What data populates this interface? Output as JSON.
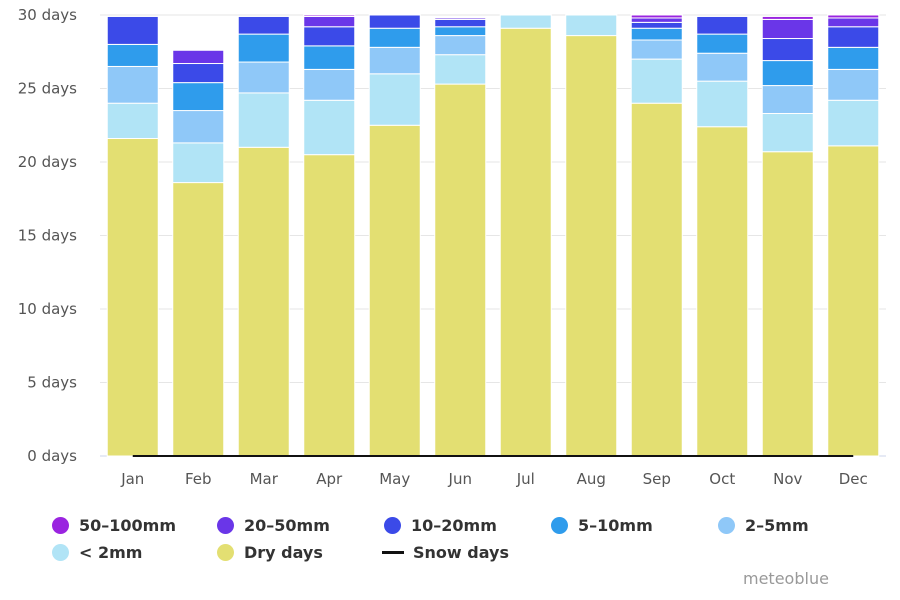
{
  "chart_data": {
    "type": "bar",
    "stacked": true,
    "categories": [
      "Jan",
      "Feb",
      "Mar",
      "Apr",
      "May",
      "Jun",
      "Jul",
      "Aug",
      "Sep",
      "Oct",
      "Nov",
      "Dec"
    ],
    "ylim": [
      0,
      30
    ],
    "yticks": [
      0,
      5,
      10,
      15,
      20,
      25,
      30
    ],
    "ytick_labels": [
      "0 days",
      "5 days",
      "10 days",
      "15 days",
      "20 days",
      "25 days",
      "30 days"
    ],
    "grid": true,
    "legend_position": "bottom",
    "series": [
      {
        "name": "Dry days",
        "color": "#e3df72",
        "values": [
          21.6,
          18.6,
          21.0,
          20.5,
          22.5,
          25.3,
          29.1,
          28.6,
          24.0,
          22.4,
          20.7,
          21.1
        ]
      },
      {
        "name": "< 2mm",
        "color": "#b1e4f6",
        "values": [
          2.4,
          2.7,
          3.7,
          3.7,
          3.5,
          2.0,
          0.9,
          1.4,
          3.0,
          3.1,
          2.6,
          3.1
        ]
      },
      {
        "name": "2-5mm",
        "color": "#8fc8f8",
        "values": [
          2.5,
          2.2,
          2.1,
          2.1,
          1.8,
          1.3,
          0,
          0,
          1.3,
          1.9,
          1.9,
          2.1
        ]
      },
      {
        "name": "5-10mm",
        "color": "#2f9cec",
        "values": [
          1.5,
          1.9,
          1.9,
          1.6,
          1.3,
          0.6,
          0,
          0,
          0.8,
          1.3,
          1.7,
          1.5
        ]
      },
      {
        "name": "10-20mm",
        "color": "#3b4ae8",
        "values": [
          1.9,
          1.3,
          1.2,
          1.3,
          0.9,
          0.5,
          0,
          0,
          0.4,
          1.2,
          1.5,
          1.4
        ]
      },
      {
        "name": "20-50mm",
        "color": "#6a36e8",
        "values": [
          0,
          0.9,
          0,
          0.7,
          0,
          0.1,
          0,
          0,
          0.3,
          0,
          1.3,
          0.6
        ]
      },
      {
        "name": "50-100mm",
        "color": "#9a24e0",
        "values": [
          0,
          0,
          0,
          0.2,
          0,
          0,
          0,
          0,
          0.2,
          0,
          0.2,
          0.2
        ]
      },
      {
        "name": "Snow days",
        "color": "#111111",
        "line": true,
        "values": [
          0,
          0,
          0,
          0,
          0,
          0,
          0,
          0,
          0,
          0,
          0,
          0
        ]
      }
    ],
    "legend_order": [
      "50-100mm",
      "20-50mm",
      "10-20mm",
      "5-10mm",
      "2-5mm",
      "< 2mm",
      "Dry days",
      "Snow days"
    ]
  },
  "legend": [
    {
      "label": "50–100mm",
      "color": "#9a24e0",
      "shape": "circle"
    },
    {
      "label": "20–50mm",
      "color": "#6a36e8",
      "shape": "circle"
    },
    {
      "label": "10–20mm",
      "color": "#3b4ae8",
      "shape": "circle"
    },
    {
      "label": "5–10mm",
      "color": "#2f9cec",
      "shape": "circle"
    },
    {
      "label": "2–5mm",
      "color": "#8fc8f8",
      "shape": "circle"
    },
    {
      "label": "< 2mm",
      "color": "#b1e4f6",
      "shape": "circle"
    },
    {
      "label": "Dry days",
      "color": "#e3df72",
      "shape": "circle"
    },
    {
      "label": "Snow days",
      "color": "#111111",
      "shape": "line"
    }
  ],
  "credit": "meteoblue"
}
